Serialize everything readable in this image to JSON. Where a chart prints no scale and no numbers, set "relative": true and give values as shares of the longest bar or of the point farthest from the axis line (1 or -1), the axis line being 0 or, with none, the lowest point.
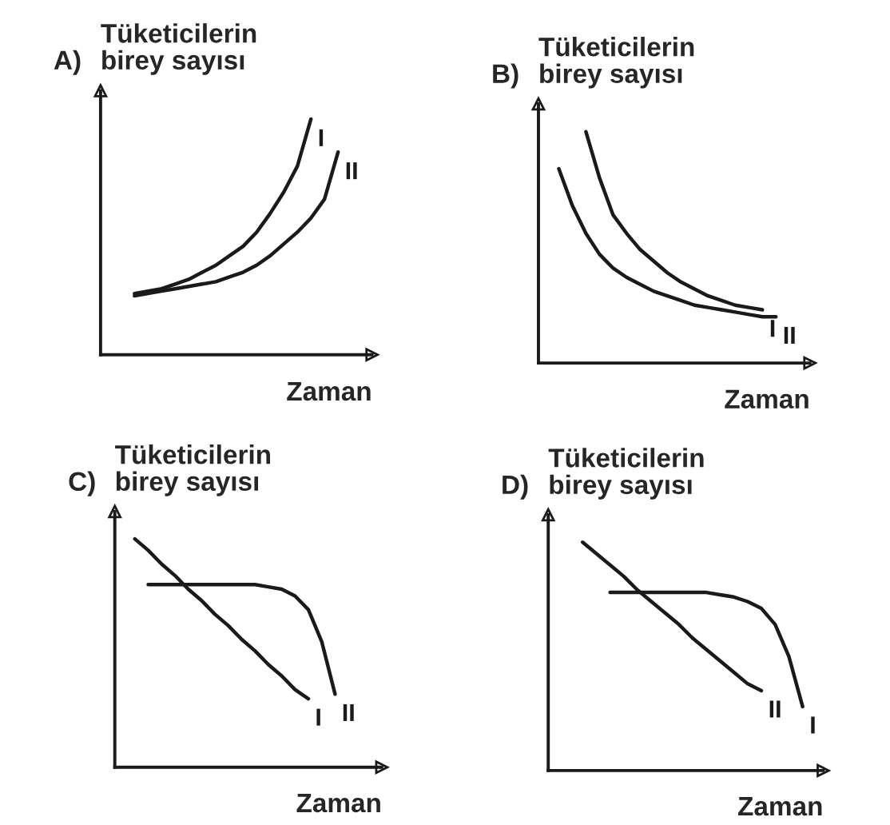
{
  "chart_data": [
    {
      "type": "line",
      "title": "A)",
      "ylabel": "Tüketicilerin\nbirey sayısı",
      "xlabel": "Zaman",
      "relative": true,
      "line_style": "solid",
      "categories": [
        null,
        null,
        null,
        null,
        null,
        null,
        null,
        null,
        null,
        null,
        null,
        null,
        null,
        null,
        null,
        null,
        null,
        null,
        null,
        null
      ],
      "series": [
        {
          "name": "I",
          "color": "#1a1a1a",
          "values": [
            null,
            null,
            0.26,
            0.27,
            0.28,
            0.3,
            0.32,
            0.35,
            0.38,
            0.42,
            0.46,
            0.52,
            0.6,
            0.69,
            0.8,
            1.0,
            null,
            null,
            null,
            null
          ]
        },
        {
          "name": "II",
          "color": "#1a1a1a",
          "values": [
            null,
            null,
            0.25,
            0.26,
            0.27,
            0.28,
            0.29,
            0.3,
            0.31,
            0.33,
            0.35,
            0.38,
            0.42,
            0.47,
            0.52,
            0.58,
            0.66,
            0.86,
            null,
            null
          ]
        }
      ]
    },
    {
      "type": "line",
      "title": "B)",
      "ylabel": "Tüketicilerin\nbirey sayısı",
      "xlabel": "Zaman",
      "relative": true,
      "line_style": "solid",
      "categories": [
        null,
        null,
        null,
        null,
        null,
        null,
        null,
        null,
        null,
        null,
        null,
        null,
        null,
        null,
        null,
        null,
        null,
        null,
        null,
        null
      ],
      "series": [
        {
          "name": "I",
          "color": "#1a1a1a",
          "values": [
            null,
            null,
            null,
            1.0,
            0.8,
            0.64,
            0.56,
            0.49,
            0.44,
            0.39,
            0.35,
            0.32,
            0.29,
            0.27,
            0.25,
            0.24,
            0.23,
            null,
            null,
            null
          ]
        },
        {
          "name": "II",
          "color": "#1a1a1a",
          "values": [
            null,
            0.84,
            0.68,
            0.56,
            0.47,
            0.41,
            0.37,
            0.34,
            0.31,
            0.29,
            0.27,
            0.25,
            0.24,
            0.23,
            0.22,
            0.21,
            0.2,
            0.2,
            null,
            null
          ]
        }
      ]
    },
    {
      "type": "line",
      "title": "C)",
      "ylabel": "Tüketicilerin\nbirey sayısı",
      "xlabel": "Zaman",
      "relative": true,
      "line_style": "solid",
      "categories": [
        null,
        null,
        null,
        null,
        null,
        null,
        null,
        null,
        null,
        null,
        null,
        null,
        null,
        null,
        null,
        null,
        null,
        null,
        null,
        null
      ],
      "series": [
        {
          "name": "I",
          "color": "#1a1a1a",
          "values": [
            null,
            1.0,
            0.95,
            0.89,
            0.84,
            0.78,
            0.73,
            0.67,
            0.62,
            0.56,
            0.51,
            0.45,
            0.4,
            0.34,
            0.3,
            null,
            null,
            null,
            null,
            null
          ]
        },
        {
          "name": "II",
          "color": "#1a1a1a",
          "values": [
            null,
            null,
            0.8,
            0.8,
            0.8,
            0.8,
            0.8,
            0.8,
            0.8,
            0.8,
            0.8,
            0.79,
            0.78,
            0.75,
            0.69,
            0.55,
            0.32,
            null,
            null,
            null
          ]
        }
      ]
    },
    {
      "type": "line",
      "title": "D)",
      "ylabel": "Tüketicilerin\nbirey sayısı",
      "xlabel": "Zaman",
      "relative": true,
      "line_style": "solid",
      "categories": [
        null,
        null,
        null,
        null,
        null,
        null,
        null,
        null,
        null,
        null,
        null,
        null,
        null,
        null,
        null,
        null,
        null,
        null,
        null,
        null
      ],
      "series": [
        {
          "name": "II",
          "color": "#1a1a1a",
          "values": [
            null,
            null,
            1.0,
            0.95,
            0.9,
            0.85,
            0.79,
            0.74,
            0.69,
            0.64,
            0.58,
            0.53,
            0.48,
            0.43,
            0.38,
            0.35,
            null,
            null,
            null,
            null
          ]
        },
        {
          "name": "I",
          "color": "#1a1a1a",
          "values": [
            null,
            null,
            null,
            null,
            0.78,
            0.78,
            0.78,
            0.78,
            0.78,
            0.78,
            0.78,
            0.78,
            0.77,
            0.76,
            0.74,
            0.71,
            0.64,
            0.5,
            0.28,
            null
          ]
        }
      ]
    }
  ]
}
